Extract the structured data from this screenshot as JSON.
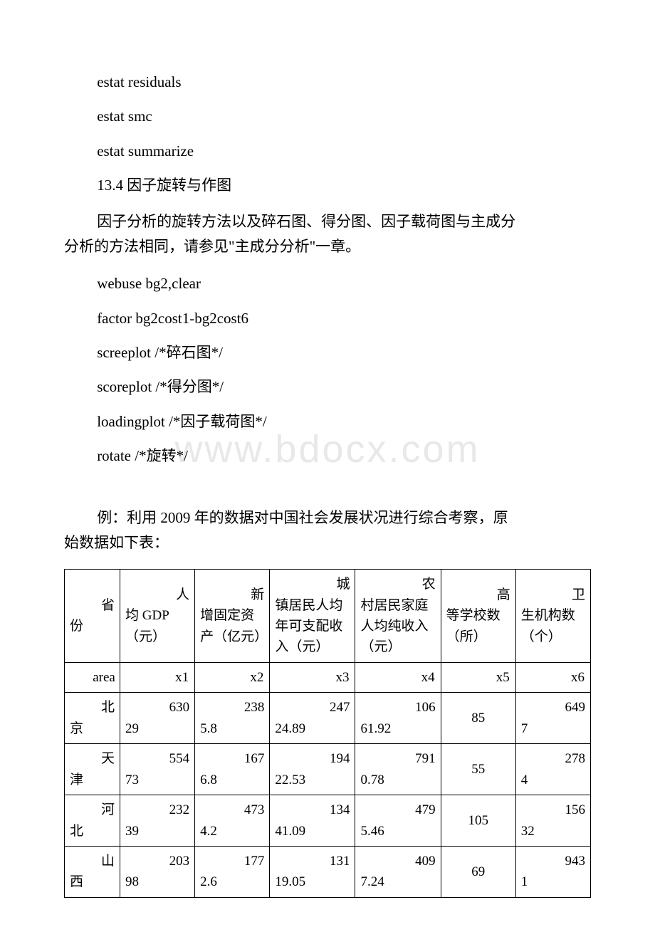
{
  "lines": {
    "l1": "estat residuals",
    "l2": "estat smc",
    "l3": "estat summarize",
    "l4": "13.4 因子旋转与作图",
    "l5a": "因子分析的旋转方法以及碎石图、得分图、因子载荷图与主成分",
    "l5b": "分析的方法相同，请参见\"主成分分析\"一章。",
    "l6": "webuse bg2,clear",
    "l7": "factor bg2cost1-bg2cost6",
    "l8": "screeplot /*碎石图*/",
    "l9": "scoreplot /*得分图*/",
    "l10": "loadingplot /*因子载荷图*/",
    "l11": "rotate /*旋转*/",
    "l12a": "例：利用 2009 年的数据对中国社会发展状况进行综合考察，原",
    "l12b": "始数据如下表："
  },
  "watermark": "www.bdocx.com",
  "table": {
    "headers": {
      "h0": {
        "r": "省",
        "l": "份"
      },
      "h1": {
        "r": "人",
        "l": "均 GDP（元）"
      },
      "h2": {
        "r": "新",
        "l": "增固定资产（亿元）"
      },
      "h3": {
        "r": "城",
        "l": "镇居民人均年可支配收入（元）"
      },
      "h4": {
        "r": "农",
        "l": "村居民家庭人均纯收入（元）"
      },
      "h5": {
        "r": "高",
        "l": "等学校数（所）"
      },
      "h6": {
        "r": "卫",
        "l": "生机构数（个）"
      }
    },
    "codes": {
      "c0": "area",
      "c1": "x1",
      "c2": "x2",
      "c3": "x3",
      "c4": "x4",
      "c5": "x5",
      "c6": "x6"
    },
    "rows": [
      {
        "province": {
          "r": "北",
          "l": "京"
        },
        "c1": {
          "t": "630",
          "b": "29"
        },
        "c2": {
          "t": "238",
          "b": "5.8"
        },
        "c3": {
          "t": "247",
          "b": "24.89"
        },
        "c4": {
          "t": "106",
          "b": "61.92"
        },
        "c5": "85",
        "c6": {
          "t": "649",
          "b": "7"
        }
      },
      {
        "province": {
          "r": "天",
          "l": "津"
        },
        "c1": {
          "t": "554",
          "b": "73"
        },
        "c2": {
          "t": "167",
          "b": "6.8"
        },
        "c3": {
          "t": "194",
          "b": "22.53"
        },
        "c4": {
          "t": "791",
          "b": "0.78"
        },
        "c5": "55",
        "c6": {
          "t": "278",
          "b": "4"
        }
      },
      {
        "province": {
          "r": "河",
          "l": "北"
        },
        "c1": {
          "t": "232",
          "b": "39"
        },
        "c2": {
          "t": "473",
          "b": "4.2"
        },
        "c3": {
          "t": "134",
          "b": "41.09"
        },
        "c4": {
          "t": "479",
          "b": "5.46"
        },
        "c5": "105",
        "c6": {
          "t": "156",
          "b": "32"
        }
      },
      {
        "province": {
          "r": "山",
          "l": "西"
        },
        "c1": {
          "t": "203",
          "b": "98"
        },
        "c2": {
          "t": "177",
          "b": "2.6"
        },
        "c3": {
          "t": "131",
          "b": "19.05"
        },
        "c4": {
          "t": "409",
          "b": "7.24"
        },
        "c5": "69",
        "c6": {
          "t": "943",
          "b": "1"
        }
      }
    ]
  }
}
